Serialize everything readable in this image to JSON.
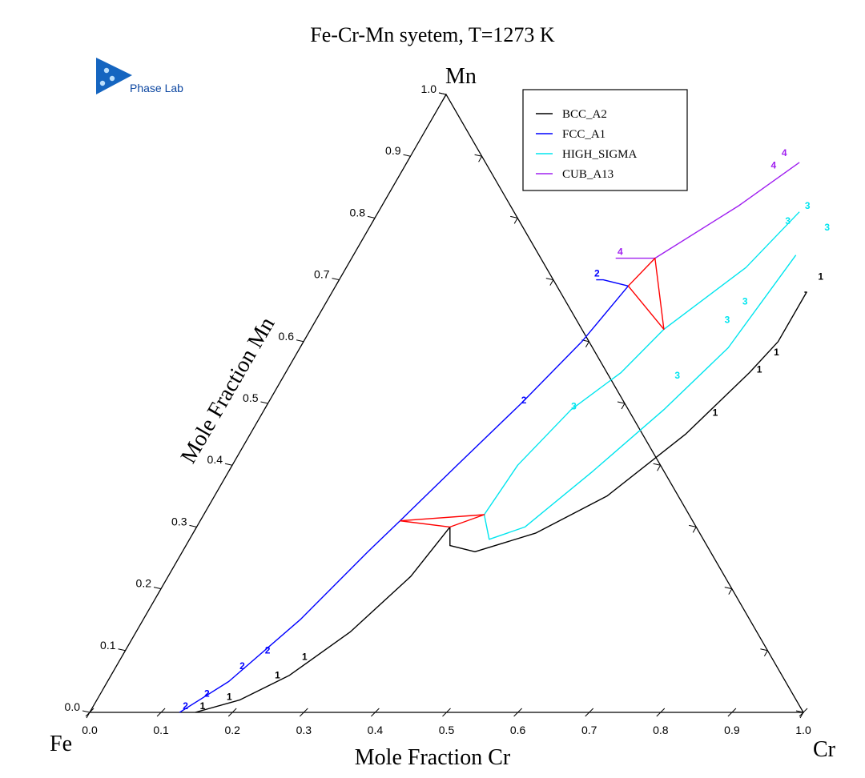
{
  "logo": {
    "text": "Phase Lab",
    "colors": [
      "#1565c0",
      "#0d47a1",
      "#4aa3df"
    ]
  },
  "chart_data": {
    "type": "ternary",
    "title": "Fe-Cr-Mn syetem, T=1273 K",
    "corners": {
      "left": "Fe",
      "right": "Cr",
      "top": "Mn"
    },
    "xlabel": "Mole Fraction Cr",
    "ylabel": "Mole Fraction Mn",
    "ticks": [
      0.0,
      0.1,
      0.2,
      0.3,
      0.4,
      0.5,
      0.6,
      0.7,
      0.8,
      0.9,
      1.0
    ],
    "tick_labels": [
      "0.0",
      "0.1",
      "0.2",
      "0.3",
      "0.4",
      "0.5",
      "0.6",
      "0.7",
      "0.8",
      "0.9",
      "1.0"
    ],
    "legend": {
      "position": "top-right",
      "entries": [
        {
          "name": "BCC_A2",
          "color": "#000000"
        },
        {
          "name": "FCC_A1",
          "color": "#0000ff"
        },
        {
          "name": "HIGH_SIGMA",
          "color": "#00e5ee"
        },
        {
          "name": "CUB_A13",
          "color": "#a020f0"
        }
      ]
    },
    "series": [
      {
        "name": "BCC_A2",
        "color": "#000000",
        "label": "1",
        "segments": [
          [
            [
              0.148,
              0.0
            ],
            [
              0.2,
              0.02
            ],
            [
              0.25,
              0.06
            ],
            [
              0.3,
              0.13
            ],
            [
              0.34,
              0.22
            ],
            [
              0.355,
              0.3
            ]
          ],
          [
            [
              0.355,
              0.3
            ],
            [
              0.37,
              0.27
            ],
            [
              0.41,
              0.26
            ],
            [
              0.48,
              0.29
            ],
            [
              0.55,
              0.35
            ],
            [
              0.61,
              0.45
            ],
            [
              0.65,
              0.55
            ],
            [
              0.665,
              0.6
            ],
            [
              0.665,
              0.68
            ],
            [
              0.662,
              0.68
            ]
          ]
        ],
        "label_points": [
          [
            0.152,
            0.005
          ],
          [
            0.182,
            0.02
          ],
          [
            0.232,
            0.055
          ],
          [
            0.255,
            0.085
          ],
          [
            0.633,
            0.48
          ],
          [
            0.66,
            0.55
          ],
          [
            0.67,
            0.578
          ],
          [
            0.671,
            0.7
          ]
        ]
      },
      {
        "name": "FCC_A1",
        "color": "#0000ff",
        "label": "2",
        "segments": [
          [
            [
              0.126,
              0.0
            ],
            [
              0.17,
              0.05
            ],
            [
              0.22,
              0.15
            ],
            [
              0.26,
              0.26
            ],
            [
              0.28,
              0.31
            ]
          ],
          [
            [
              0.28,
              0.31
            ],
            [
              0.315,
              0.4
            ],
            [
              0.355,
              0.5
            ],
            [
              0.39,
              0.6
            ],
            [
              0.41,
              0.69
            ]
          ],
          [
            [
              0.41,
              0.69
            ],
            [
              0.37,
              0.7
            ],
            [
              0.36,
              0.7
            ]
          ]
        ],
        "label_points": [
          [
            0.128,
            0.005
          ],
          [
            0.148,
            0.025
          ],
          [
            0.175,
            0.07
          ],
          [
            0.198,
            0.095
          ],
          [
            0.355,
            0.5
          ],
          [
            0.355,
            0.705
          ]
        ]
      },
      {
        "name": "HIGH_SIGMA",
        "color": "#00e5ee",
        "label": "3",
        "segments": [
          [
            [
              0.393,
              0.32
            ],
            [
              0.4,
              0.4
            ],
            [
              0.43,
              0.49
            ],
            [
              0.47,
              0.55
            ],
            [
              0.495,
              0.62
            ],
            [
              0.56,
              0.72
            ],
            [
              0.59,
              0.81
            ]
          ],
          [
            [
              0.393,
              0.32
            ],
            [
              0.42,
              0.28
            ],
            [
              0.46,
              0.3
            ],
            [
              0.51,
              0.39
            ],
            [
              0.56,
              0.49
            ],
            [
              0.6,
              0.59
            ],
            [
              0.62,
              0.74
            ]
          ]
        ],
        "label_points": [
          [
            0.43,
            0.49
          ],
          [
            0.58,
            0.79
          ],
          [
            0.595,
            0.815
          ],
          [
            0.64,
            0.78
          ],
          [
            0.55,
            0.54
          ],
          [
            0.575,
            0.63
          ],
          [
            0.585,
            0.66
          ]
        ]
      },
      {
        "name": "CUB_A13",
        "color": "#a020f0",
        "label": "4",
        "segments": [
          [
            [
              0.37,
              0.735
            ],
            [
              0.425,
              0.735
            ],
            [
              0.5,
              0.82
            ],
            [
              0.55,
              0.89
            ]
          ]
        ],
        "label_points": [
          [
            0.37,
            0.74
          ],
          [
            0.515,
            0.88
          ],
          [
            0.52,
            0.9
          ]
        ]
      },
      {
        "name": "tie-triangles",
        "color": "#ff0000",
        "segments": [
          [
            [
              0.41,
              0.69
            ],
            [
              0.425,
              0.735
            ],
            [
              0.495,
              0.62
            ],
            [
              0.41,
              0.69
            ]
          ],
          [
            [
              0.28,
              0.31
            ],
            [
              0.355,
              0.3
            ],
            [
              0.393,
              0.32
            ],
            [
              0.28,
              0.31
            ]
          ]
        ]
      }
    ]
  }
}
